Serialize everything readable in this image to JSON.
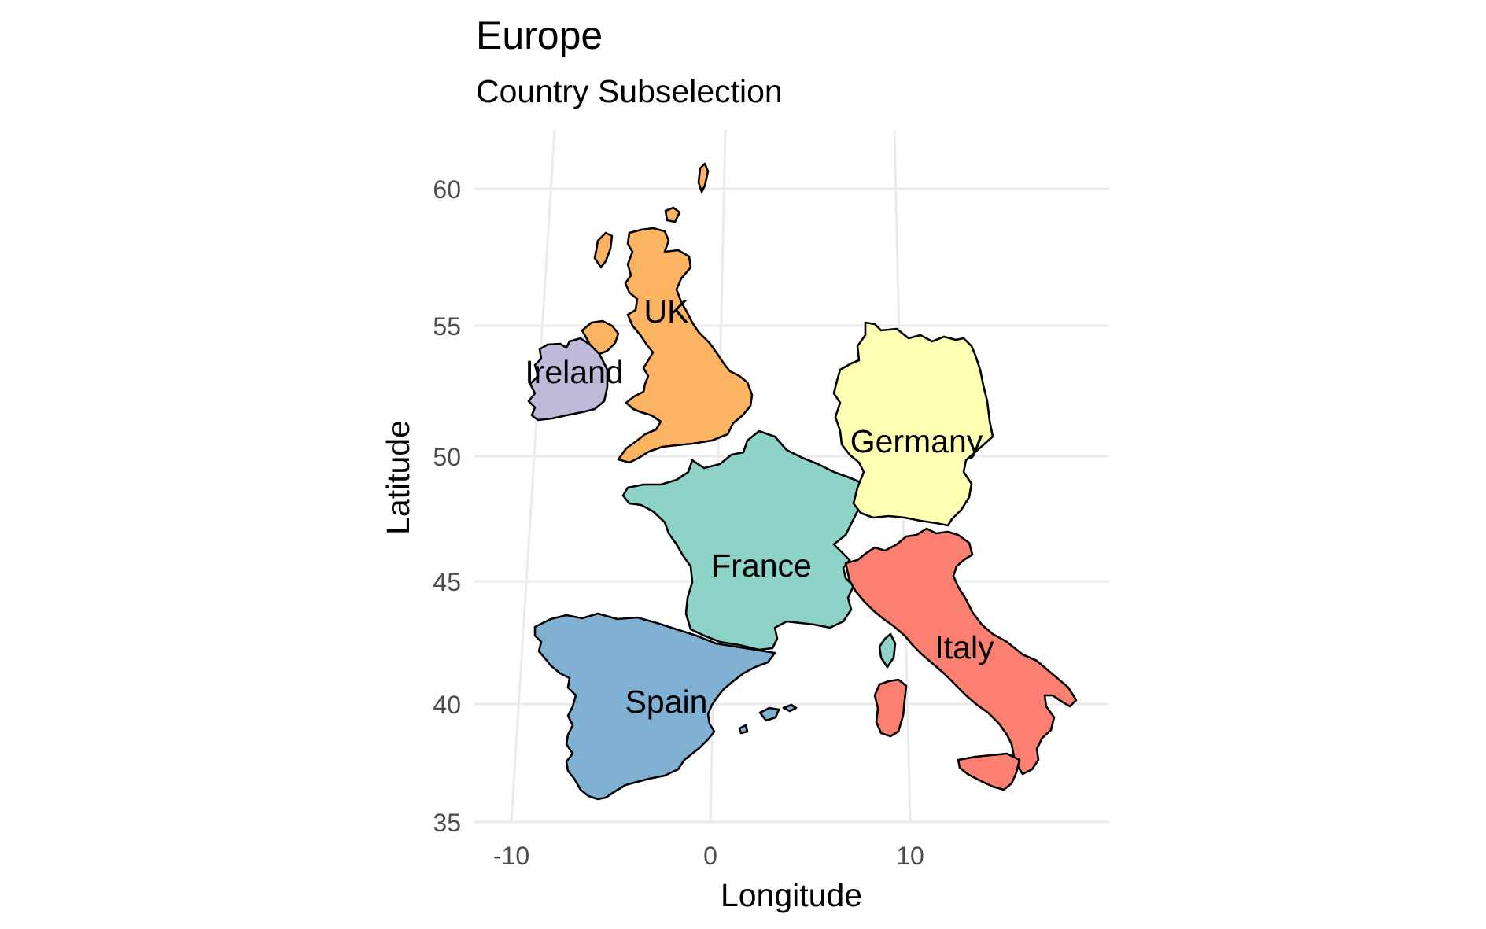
{
  "title": "Europe",
  "subtitle": "Country Subselection",
  "x_axis": {
    "label": "Longitude",
    "ticks": [
      "-10",
      "0",
      "10"
    ],
    "values": [
      -10,
      0,
      10
    ]
  },
  "y_axis": {
    "label": "Latitude",
    "ticks": [
      "35",
      "40",
      "45",
      "50",
      "55",
      "60"
    ],
    "values": [
      35,
      40,
      45,
      50,
      55,
      60
    ]
  },
  "regions": [
    {
      "id": "uk",
      "label": "UK",
      "color": "#fdb462"
    },
    {
      "id": "ireland",
      "label": "Ireland",
      "color": "#bebada"
    },
    {
      "id": "germany",
      "label": "Germany",
      "color": "#ffffb3"
    },
    {
      "id": "france",
      "label": "France",
      "color": "#8dd3c7"
    },
    {
      "id": "italy",
      "label": "Italy",
      "color": "#fb8072"
    },
    {
      "id": "spain",
      "label": "Spain",
      "color": "#80b1d3"
    }
  ],
  "chart_data": {
    "type": "map",
    "title": "Europe",
    "subtitle": "Country Subselection",
    "xlabel": "Longitude",
    "ylabel": "Latitude",
    "xlim": [
      -12,
      19
    ],
    "ylim": [
      35,
      62
    ],
    "grid": true,
    "regions": [
      "UK",
      "Ireland",
      "Germany",
      "France",
      "Italy",
      "Spain"
    ]
  }
}
